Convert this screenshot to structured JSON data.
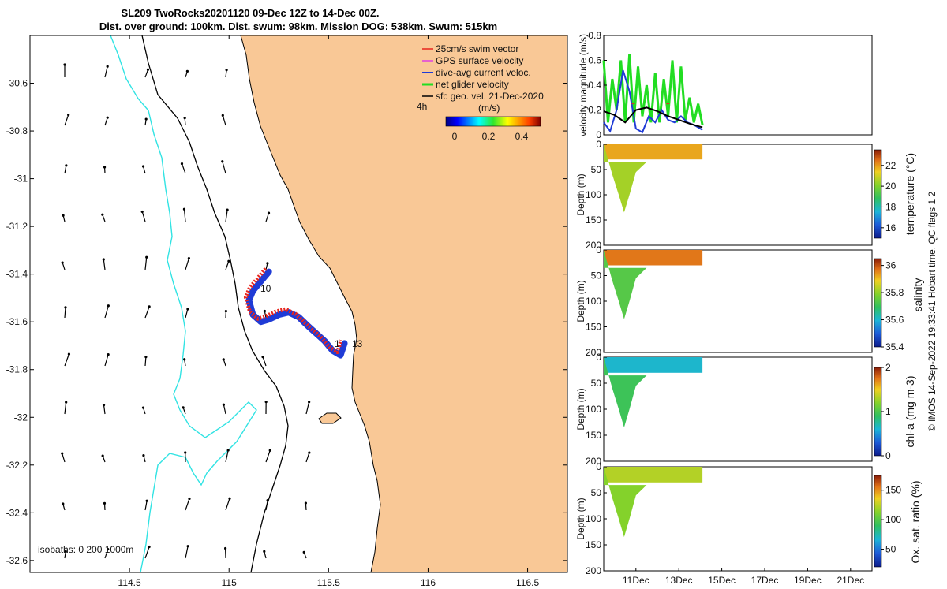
{
  "chart_data": [
    {
      "type": "scatter",
      "name": "map",
      "title_line1": "SL209 TwoRocks20201120 09-Dec 12Z to 14-Dec 00Z.",
      "title_line2": "Dist. over ground: 100km. Dist. swum: 98km. Mission DOG: 538km. Swum: 515km",
      "xlim": [
        114.0,
        116.7
      ],
      "ylim": [
        -32.65,
        -30.4
      ],
      "xticks": [
        114.5,
        115,
        115.5,
        116,
        116.5
      ],
      "xtick_labels": [
        "114.5",
        "115",
        "115.5",
        "116",
        "116.5"
      ],
      "yticks": [
        -30.6,
        -30.8,
        -31,
        -31.2,
        -31.4,
        -31.6,
        -31.8,
        -32,
        -32.2,
        -32.4,
        -32.6
      ],
      "ytick_labels": [
        "-30.6",
        "-30.8",
        "-31",
        "-31.2",
        "-31.4",
        "-31.6",
        "-31.8",
        "-32",
        "-32.2",
        "-32.4",
        "-32.6"
      ],
      "legend": [
        {
          "label": "25cm/s swim vector",
          "color": "#e8261e"
        },
        {
          "label": "GPS surface velocity",
          "color": "#e040e0"
        },
        {
          "label": "dive-avg current veloc.",
          "color": "#1f3bd6"
        },
        {
          "label": "net glider velocity",
          "color": "#22dd22"
        },
        {
          "label": "sfc geo. vel. 21-Dec-2020",
          "color": "#000000"
        }
      ],
      "colorbar": {
        "label": "(m/s)",
        "ticks": [
          "0",
          "0.2",
          "0.4"
        ],
        "range": [
          0,
          0.5
        ],
        "prefix": "4h"
      },
      "isobath_label": "isobaths: 0   200  1000m",
      "annotations": [
        "10",
        "1",
        "13"
      ],
      "track": {
        "lon": [
          115.2,
          115.16,
          115.12,
          115.1,
          115.12,
          115.16,
          115.2,
          115.25,
          115.3,
          115.35,
          115.4,
          115.44,
          115.48,
          115.52,
          115.56,
          115.58
        ],
        "lat": [
          -31.39,
          -31.43,
          -31.47,
          -31.51,
          -31.57,
          -31.6,
          -31.59,
          -31.57,
          -31.56,
          -31.58,
          -31.62,
          -31.65,
          -31.68,
          -31.72,
          -31.74,
          -31.69
        ]
      }
    },
    {
      "type": "line",
      "name": "velocity",
      "ylabel": "velocity magnitude (m/s)",
      "ylim": [
        0,
        0.8
      ],
      "yticks": [
        "0",
        "0.2",
        "0.4",
        "0.6",
        "0.8"
      ],
      "xlim_day": [
        9.5,
        22
      ],
      "series": [
        {
          "name": "net glider velocity",
          "color": "#22dd22",
          "x": [
            9.5,
            9.7,
            9.9,
            10.1,
            10.3,
            10.5,
            10.7,
            10.9,
            11.1,
            11.3,
            11.5,
            11.7,
            11.9,
            12.1,
            12.3,
            12.5,
            12.7,
            12.9,
            13.1,
            13.3,
            13.5,
            13.7,
            13.9,
            14.1
          ],
          "y": [
            0.6,
            0.1,
            0.45,
            0.2,
            0.6,
            0.1,
            0.65,
            0.1,
            0.55,
            0.15,
            0.4,
            0.1,
            0.5,
            0.1,
            0.45,
            0.15,
            0.6,
            0.1,
            0.55,
            0.12,
            0.3,
            0.1,
            0.25,
            0.08
          ]
        },
        {
          "name": "dive-avg current veloc.",
          "color": "#1f3bd6",
          "x": [
            9.5,
            9.8,
            10.1,
            10.4,
            10.7,
            11.0,
            11.3,
            11.6,
            11.9,
            12.2,
            12.5,
            12.8,
            13.1,
            13.4,
            13.7,
            14.0,
            14.1
          ],
          "y": [
            0.1,
            0.03,
            0.2,
            0.52,
            0.35,
            0.05,
            0.02,
            0.15,
            0.1,
            0.2,
            0.12,
            0.1,
            0.15,
            0.1,
            0.08,
            0.05,
            0.04
          ]
        },
        {
          "name": "sfc geo. vel.",
          "color": "#000000",
          "x": [
            9.5,
            10.0,
            10.5,
            11.0,
            11.5,
            12.0,
            12.5,
            13.0,
            13.5,
            14.1
          ],
          "y": [
            0.19,
            0.16,
            0.1,
            0.2,
            0.22,
            0.19,
            0.15,
            0.12,
            0.09,
            0.06
          ]
        },
        {
          "name": "swim vector",
          "color": "#e8261e",
          "x": [
            10.8,
            12.9
          ],
          "y": [
            0.25,
            0.25
          ]
        }
      ]
    },
    {
      "type": "heatmap",
      "name": "temperature",
      "ylabel": "Depth (m)",
      "ylim": [
        0,
        200
      ],
      "yticks": [
        "0",
        "50",
        "100",
        "150",
        "200"
      ],
      "colorbar_label": "temperature (°C)",
      "colorbar_ticks": [
        "16",
        "18",
        "20",
        "22"
      ],
      "colorbar_range": [
        15,
        23.5
      ],
      "surface_value": 21.6,
      "deep_value": 20.2
    },
    {
      "type": "heatmap",
      "name": "salinity",
      "ylabel": "Depth (m)",
      "ylim": [
        0,
        200
      ],
      "yticks": [
        "0",
        "50",
        "100",
        "150",
        "200"
      ],
      "colorbar_label": "salinity",
      "colorbar_ticks": [
        "35.4",
        "35.6",
        "35.8",
        "36"
      ],
      "colorbar_range": [
        35.4,
        36.05
      ],
      "surface_value": 35.95,
      "deep_value": 35.72
    },
    {
      "type": "heatmap",
      "name": "chl-a",
      "ylabel": "Depth (m)",
      "ylim": [
        0,
        200
      ],
      "yticks": [
        "0",
        "50",
        "100",
        "150",
        "200"
      ],
      "colorbar_label": "chl-a (mg m-3)",
      "colorbar_ticks": [
        "0",
        "1",
        "2"
      ],
      "colorbar_range": [
        0,
        2
      ],
      "surface_value": 0.6,
      "deep_value": 0.9
    },
    {
      "type": "heatmap",
      "name": "oxygen",
      "ylabel": "Depth (m)",
      "ylim": [
        0,
        200
      ],
      "yticks": [
        "0",
        "50",
        "100",
        "150",
        "200"
      ],
      "xticks": [
        "11Dec",
        "13Dec",
        "15Dec",
        "17Dec",
        "19Dec",
        "21Dec"
      ],
      "colorbar_label": "Ox. sat. ratio (%)",
      "colorbar_ticks": [
        "50",
        "100",
        "150"
      ],
      "colorbar_range": [
        20,
        175
      ],
      "surface_value": 118,
      "deep_value": 108
    }
  ],
  "footer": "© IMOS 14-Sep-2022 19:33:41 Hobart time. QC flags 1  2",
  "colors": {
    "land": "#f9c896",
    "ocean": "#ffffff",
    "isobath200": "#000000",
    "isobath1000": "#32e3e3"
  }
}
